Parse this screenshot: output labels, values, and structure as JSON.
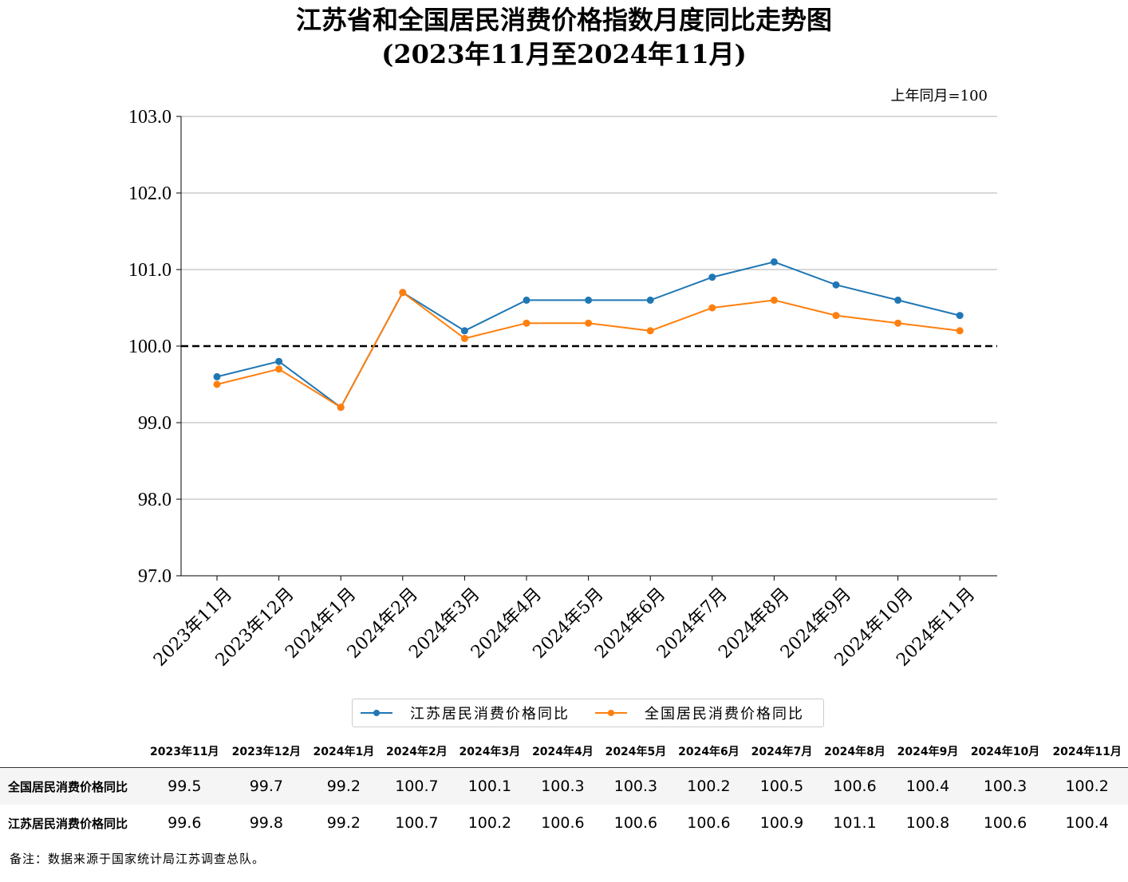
{
  "title_line1": "江苏省和全国居民消费价格指数月度同比走势图",
  "title_line2": "(2023年11月至2024年11月)",
  "unit_note": "上年同月=100",
  "footnote": "备注：数据来源于国家统计局江苏调查总队。",
  "colors": {
    "jiangsu": "#1f77b4",
    "national": "#ff7f0e",
    "reference_line": "#000000",
    "grid": "#b0b0b0"
  },
  "chart_data": {
    "type": "line",
    "categories": [
      "2023年11月",
      "2023年12月",
      "2024年1月",
      "2024年2月",
      "2024年3月",
      "2024年4月",
      "2024年5月",
      "2024年6月",
      "2024年7月",
      "2024年8月",
      "2024年9月",
      "2024年10月",
      "2024年11月"
    ],
    "series": [
      {
        "name": "江苏居民消费价格同比",
        "color": "#1f77b4",
        "values": [
          99.6,
          99.8,
          99.2,
          100.7,
          100.2,
          100.6,
          100.6,
          100.6,
          100.9,
          101.1,
          100.8,
          100.6,
          100.4
        ]
      },
      {
        "name": "全国居民消费价格同比",
        "color": "#ff7f0e",
        "values": [
          99.5,
          99.7,
          99.2,
          100.7,
          100.1,
          100.3,
          100.3,
          100.2,
          100.5,
          100.6,
          100.4,
          100.3,
          100.2
        ]
      }
    ],
    "ylim": [
      97.0,
      103.0
    ],
    "yticks": [
      "97.0",
      "98.0",
      "99.0",
      "100.0",
      "101.0",
      "102.0",
      "103.0"
    ],
    "reference_value": 100.0,
    "grid": "horizontal",
    "legend_position": "bottom-center"
  },
  "table": {
    "headers": [
      "2023年11月",
      "2023年12月",
      "2024年1月",
      "2024年2月",
      "2024年3月",
      "2024年4月",
      "2024年5月",
      "2024年6月",
      "2024年7月",
      "2024年8月",
      "2024年9月",
      "2024年10月",
      "2024年11月"
    ],
    "rows": [
      {
        "label": "全国居民消费价格同比",
        "values": [
          "99.5",
          "99.7",
          "99.2",
          "100.7",
          "100.1",
          "100.3",
          "100.3",
          "100.2",
          "100.5",
          "100.6",
          "100.4",
          "100.3",
          "100.2"
        ]
      },
      {
        "label": "江苏居民消费价格同比",
        "values": [
          "99.6",
          "99.8",
          "99.2",
          "100.7",
          "100.2",
          "100.6",
          "100.6",
          "100.6",
          "100.9",
          "101.1",
          "100.8",
          "100.6",
          "100.4"
        ]
      }
    ]
  }
}
